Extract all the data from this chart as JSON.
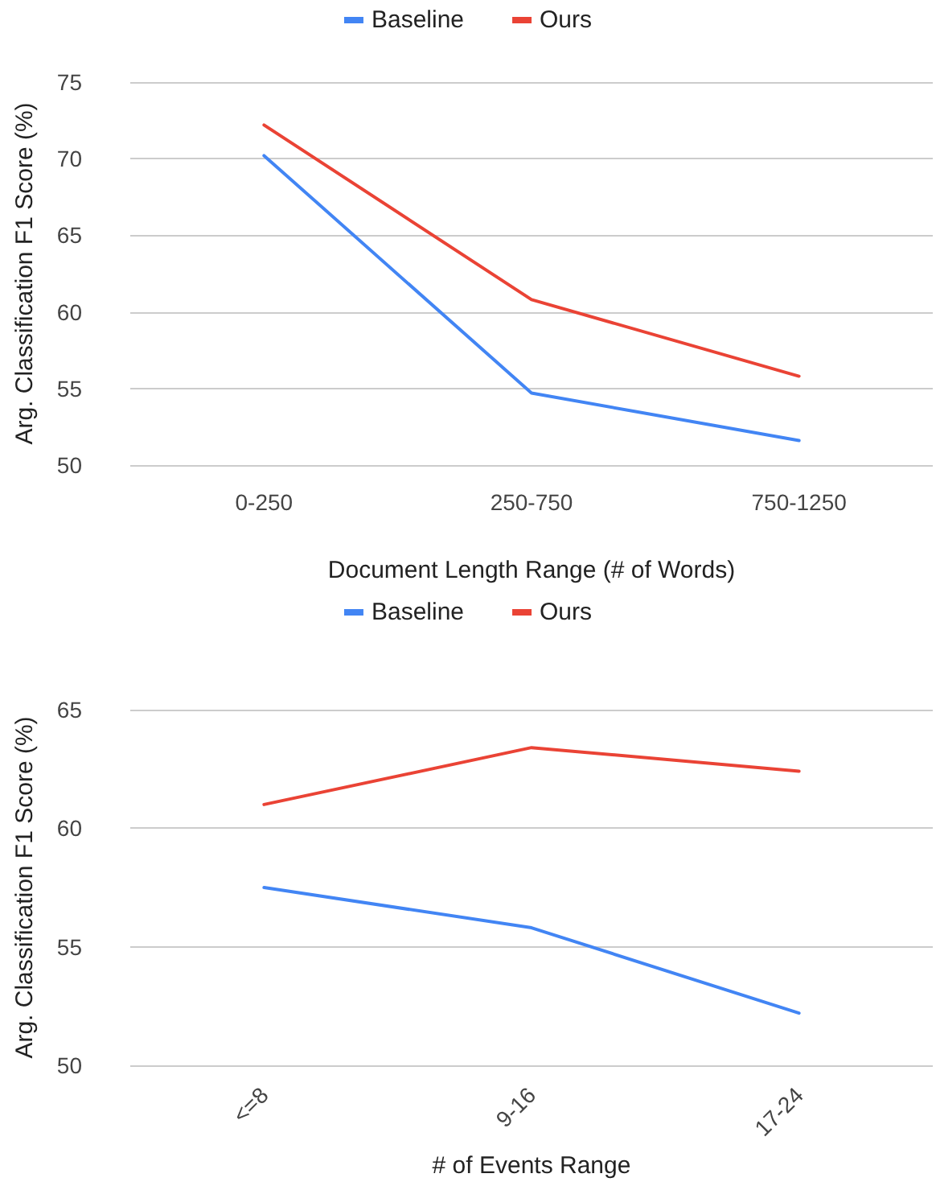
{
  "chart_data": [
    {
      "type": "line",
      "xlabel": "Document Length Range (# of Words)",
      "ylabel": "Arg. Classification F1 Score (%)",
      "categories": [
        "0-250",
        "250-750",
        "750-1250"
      ],
      "series": [
        {
          "name": "Baseline",
          "color": "#4285f4",
          "values": [
            70.2,
            54.7,
            51.6
          ]
        },
        {
          "name": "Ours",
          "color": "#ea4335",
          "values": [
            72.2,
            60.8,
            55.8
          ]
        }
      ],
      "ylim": [
        50,
        75
      ],
      "yticks": [
        50,
        55,
        60,
        65,
        70,
        75
      ],
      "grid": "y",
      "legend": "top",
      "marker": "none"
    },
    {
      "type": "line",
      "xlabel": "# of Events Range",
      "ylabel": "Arg. Classification F1 Score (%)",
      "categories": [
        "<=8",
        "9-16",
        "17-24"
      ],
      "series": [
        {
          "name": "Baseline",
          "color": "#4285f4",
          "values": [
            57.5,
            55.8,
            52.2
          ]
        },
        {
          "name": "Ours",
          "color": "#ea4335",
          "values": [
            61.0,
            63.4,
            62.4
          ]
        }
      ],
      "ylim": [
        50,
        65
      ],
      "yticks": [
        50,
        55,
        60,
        65
      ],
      "grid": "y",
      "legend": "top",
      "marker": "none"
    }
  ]
}
